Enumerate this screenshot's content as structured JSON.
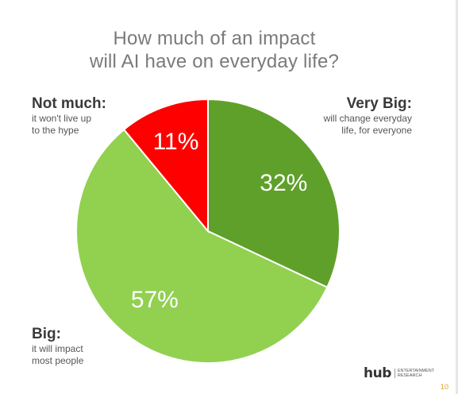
{
  "title": {
    "line1": "How much of an impact",
    "line2": "will AI have on everyday life?"
  },
  "chart_data": {
    "type": "pie",
    "title": "How much of an impact will AI have on everyday life?",
    "start": "12 o'clock, clockwise",
    "slices": [
      {
        "key": "very_big",
        "value": 32,
        "label": "32%",
        "color": "#5fa02a",
        "heading": "Very Big:",
        "sub": [
          "will change everyday",
          "life, for everyone"
        ]
      },
      {
        "key": "big",
        "value": 57,
        "label": "57%",
        "color": "#92d050",
        "heading": "Big:",
        "sub": [
          "it will impact",
          "most people"
        ]
      },
      {
        "key": "not_much",
        "value": 11,
        "label": "11%",
        "color": "#ff0000",
        "heading": "Not much:",
        "sub": [
          "it won't live up",
          "to the hype"
        ]
      }
    ]
  },
  "footer": {
    "logo_word": "hub",
    "logo_sub_line1": "Entertainment",
    "logo_sub_line2": "Research",
    "page_number": "10"
  },
  "colors": {
    "title": "#7a7a7a",
    "slice_separator": "#ffffff",
    "page_number": "#e0a020"
  }
}
